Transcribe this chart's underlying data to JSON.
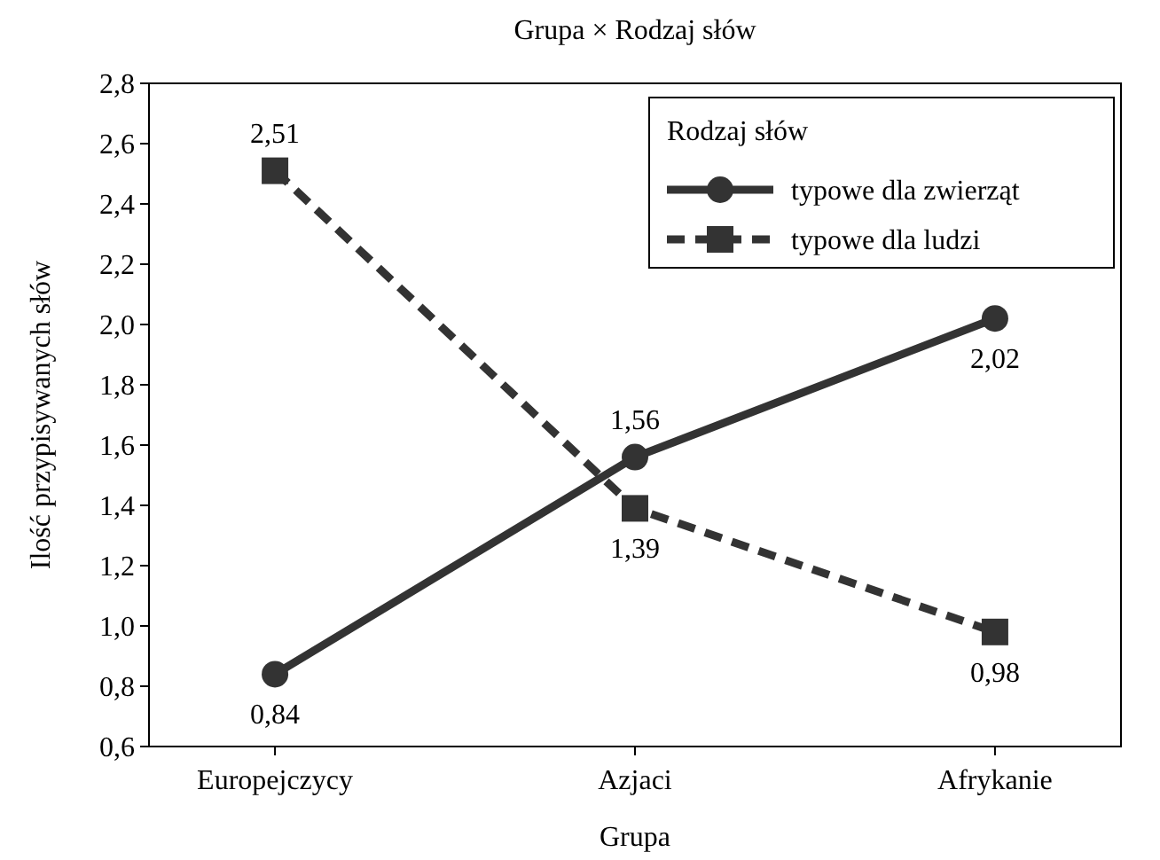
{
  "chart_data": {
    "type": "line",
    "title": "Grupa × Rodzaj słów",
    "xlabel": "Grupa",
    "ylabel": "Ilość przypisywanych słów",
    "legend_title": "Rodzaj słów",
    "legend": "top right",
    "grid": false,
    "categories": [
      "Europejczycy",
      "Azjaci",
      "Afrykanie"
    ],
    "ylim": [
      0.6,
      2.8
    ],
    "yticks": [
      {
        "value": 0.6,
        "label": "0,6"
      },
      {
        "value": 0.8,
        "label": "0,8"
      },
      {
        "value": 1.0,
        "label": "1,0"
      },
      {
        "value": 1.2,
        "label": "1,2"
      },
      {
        "value": 1.4,
        "label": "1,4"
      },
      {
        "value": 1.6,
        "label": "1,6"
      },
      {
        "value": 1.8,
        "label": "1,8"
      },
      {
        "value": 2.0,
        "label": "2,0"
      },
      {
        "value": 2.2,
        "label": "2,2"
      },
      {
        "value": 2.4,
        "label": "2,4"
      },
      {
        "value": 2.6,
        "label": "2,6"
      },
      {
        "value": 2.8,
        "label": "2,8"
      }
    ],
    "series": [
      {
        "name": "typowe dla zwierząt",
        "color": "#333333",
        "marker": "circle",
        "line_style": "solid",
        "values": [
          0.84,
          1.56,
          2.02
        ],
        "value_labels": [
          "0,84",
          "1,56",
          "2,02"
        ]
      },
      {
        "name": "typowe dla ludzi",
        "color": "#333333",
        "marker": "square",
        "line_style": "dashed",
        "values": [
          2.51,
          1.39,
          0.98
        ],
        "value_labels": [
          "2,51",
          "1,39",
          "0,98"
        ]
      }
    ]
  }
}
